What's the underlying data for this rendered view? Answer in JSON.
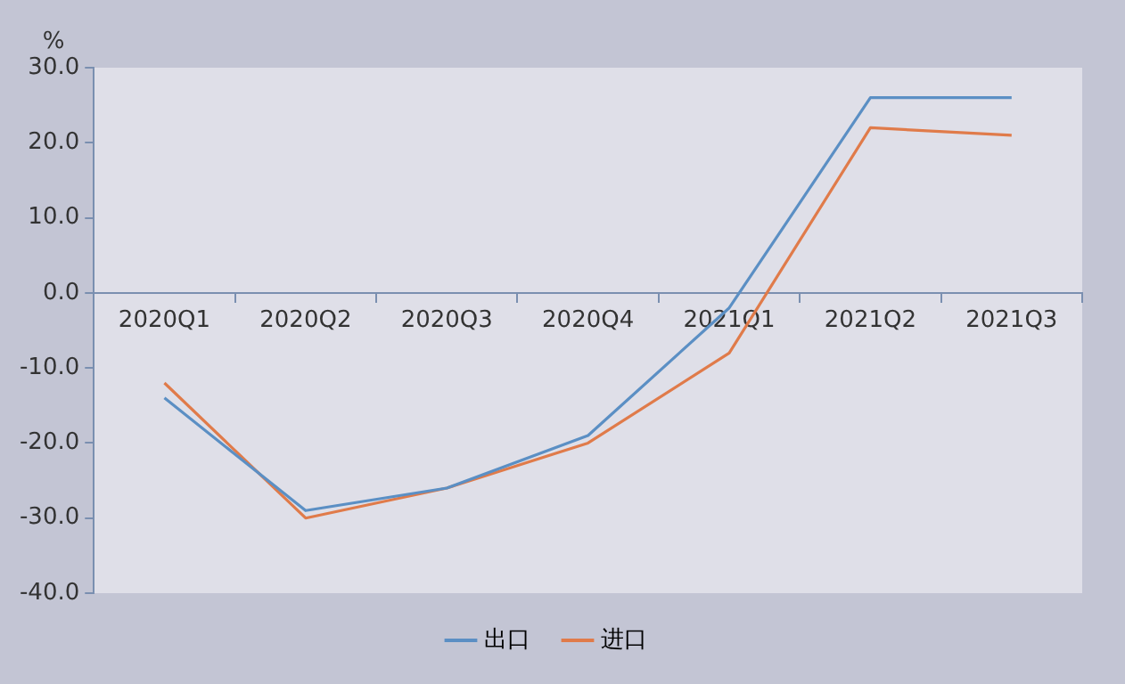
{
  "chart_data": {
    "type": "line",
    "ylabel": "%",
    "categories": [
      "2020Q1",
      "2020Q2",
      "2020Q3",
      "2020Q4",
      "2021Q1",
      "2021Q2",
      "2021Q3"
    ],
    "series": [
      {
        "name": "出口",
        "color": "#5b8fc4",
        "values": [
          -14,
          -29,
          -26,
          -19,
          -2,
          26,
          26
        ]
      },
      {
        "name": "进口",
        "color": "#e07b4a",
        "values": [
          -12,
          -30,
          -26,
          -20,
          -8,
          22,
          21
        ]
      }
    ],
    "ylim": [
      -40,
      30
    ],
    "yticks": [
      {
        "value": -40,
        "label": "-40.0"
      },
      {
        "value": -30,
        "label": "-30.0"
      },
      {
        "value": -20,
        "label": "-20.0"
      },
      {
        "value": -10,
        "label": "-10.0"
      },
      {
        "value": 0,
        "label": "0.0"
      },
      {
        "value": 10,
        "label": "10.0"
      },
      {
        "value": 20,
        "label": "20.0"
      },
      {
        "value": 30,
        "label": "30.0"
      }
    ],
    "grid": false,
    "legend": "bottom",
    "marker": "none",
    "line_style": "solid"
  }
}
